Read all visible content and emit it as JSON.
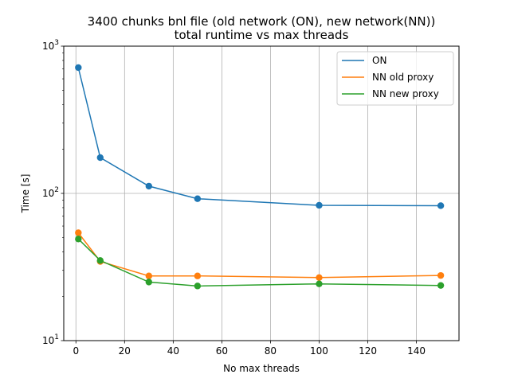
{
  "chart_data": {
    "type": "line",
    "title": [
      "3400 chunks bnl file (old network (ON), new network(NN))",
      "total runtime vs max threads"
    ],
    "xlabel": "No max threads",
    "ylabel": "Time [s]",
    "xlim": [
      -5,
      157.5
    ],
    "ylim": [
      10,
      1000
    ],
    "yscale": "log",
    "x_ticks": [
      0,
      20,
      40,
      60,
      80,
      100,
      120,
      140
    ],
    "y_ticks": [
      {
        "value": 10,
        "base": "10",
        "exp": "1"
      },
      {
        "value": 100,
        "base": "10",
        "exp": "2"
      },
      {
        "value": 1000,
        "base": "10",
        "exp": "3"
      }
    ],
    "grid": "vertical at x ticks, horizontal at major y ticks",
    "legend_position": "upper-right",
    "x": [
      1,
      10,
      30,
      50,
      100,
      150
    ],
    "series": [
      {
        "name": "ON",
        "color": "#1f77b4",
        "values": [
          715,
          175,
          112,
          92,
          83,
          82.5
        ]
      },
      {
        "name": "NN old proxy",
        "color": "#ff7f0e",
        "values": [
          54,
          34.5,
          27.5,
          27.5,
          26.8,
          27.7
        ]
      },
      {
        "name": "NN new proxy",
        "color": "#2ca02c",
        "values": [
          49,
          35,
          25,
          23.5,
          24.3,
          23.7
        ]
      }
    ]
  }
}
